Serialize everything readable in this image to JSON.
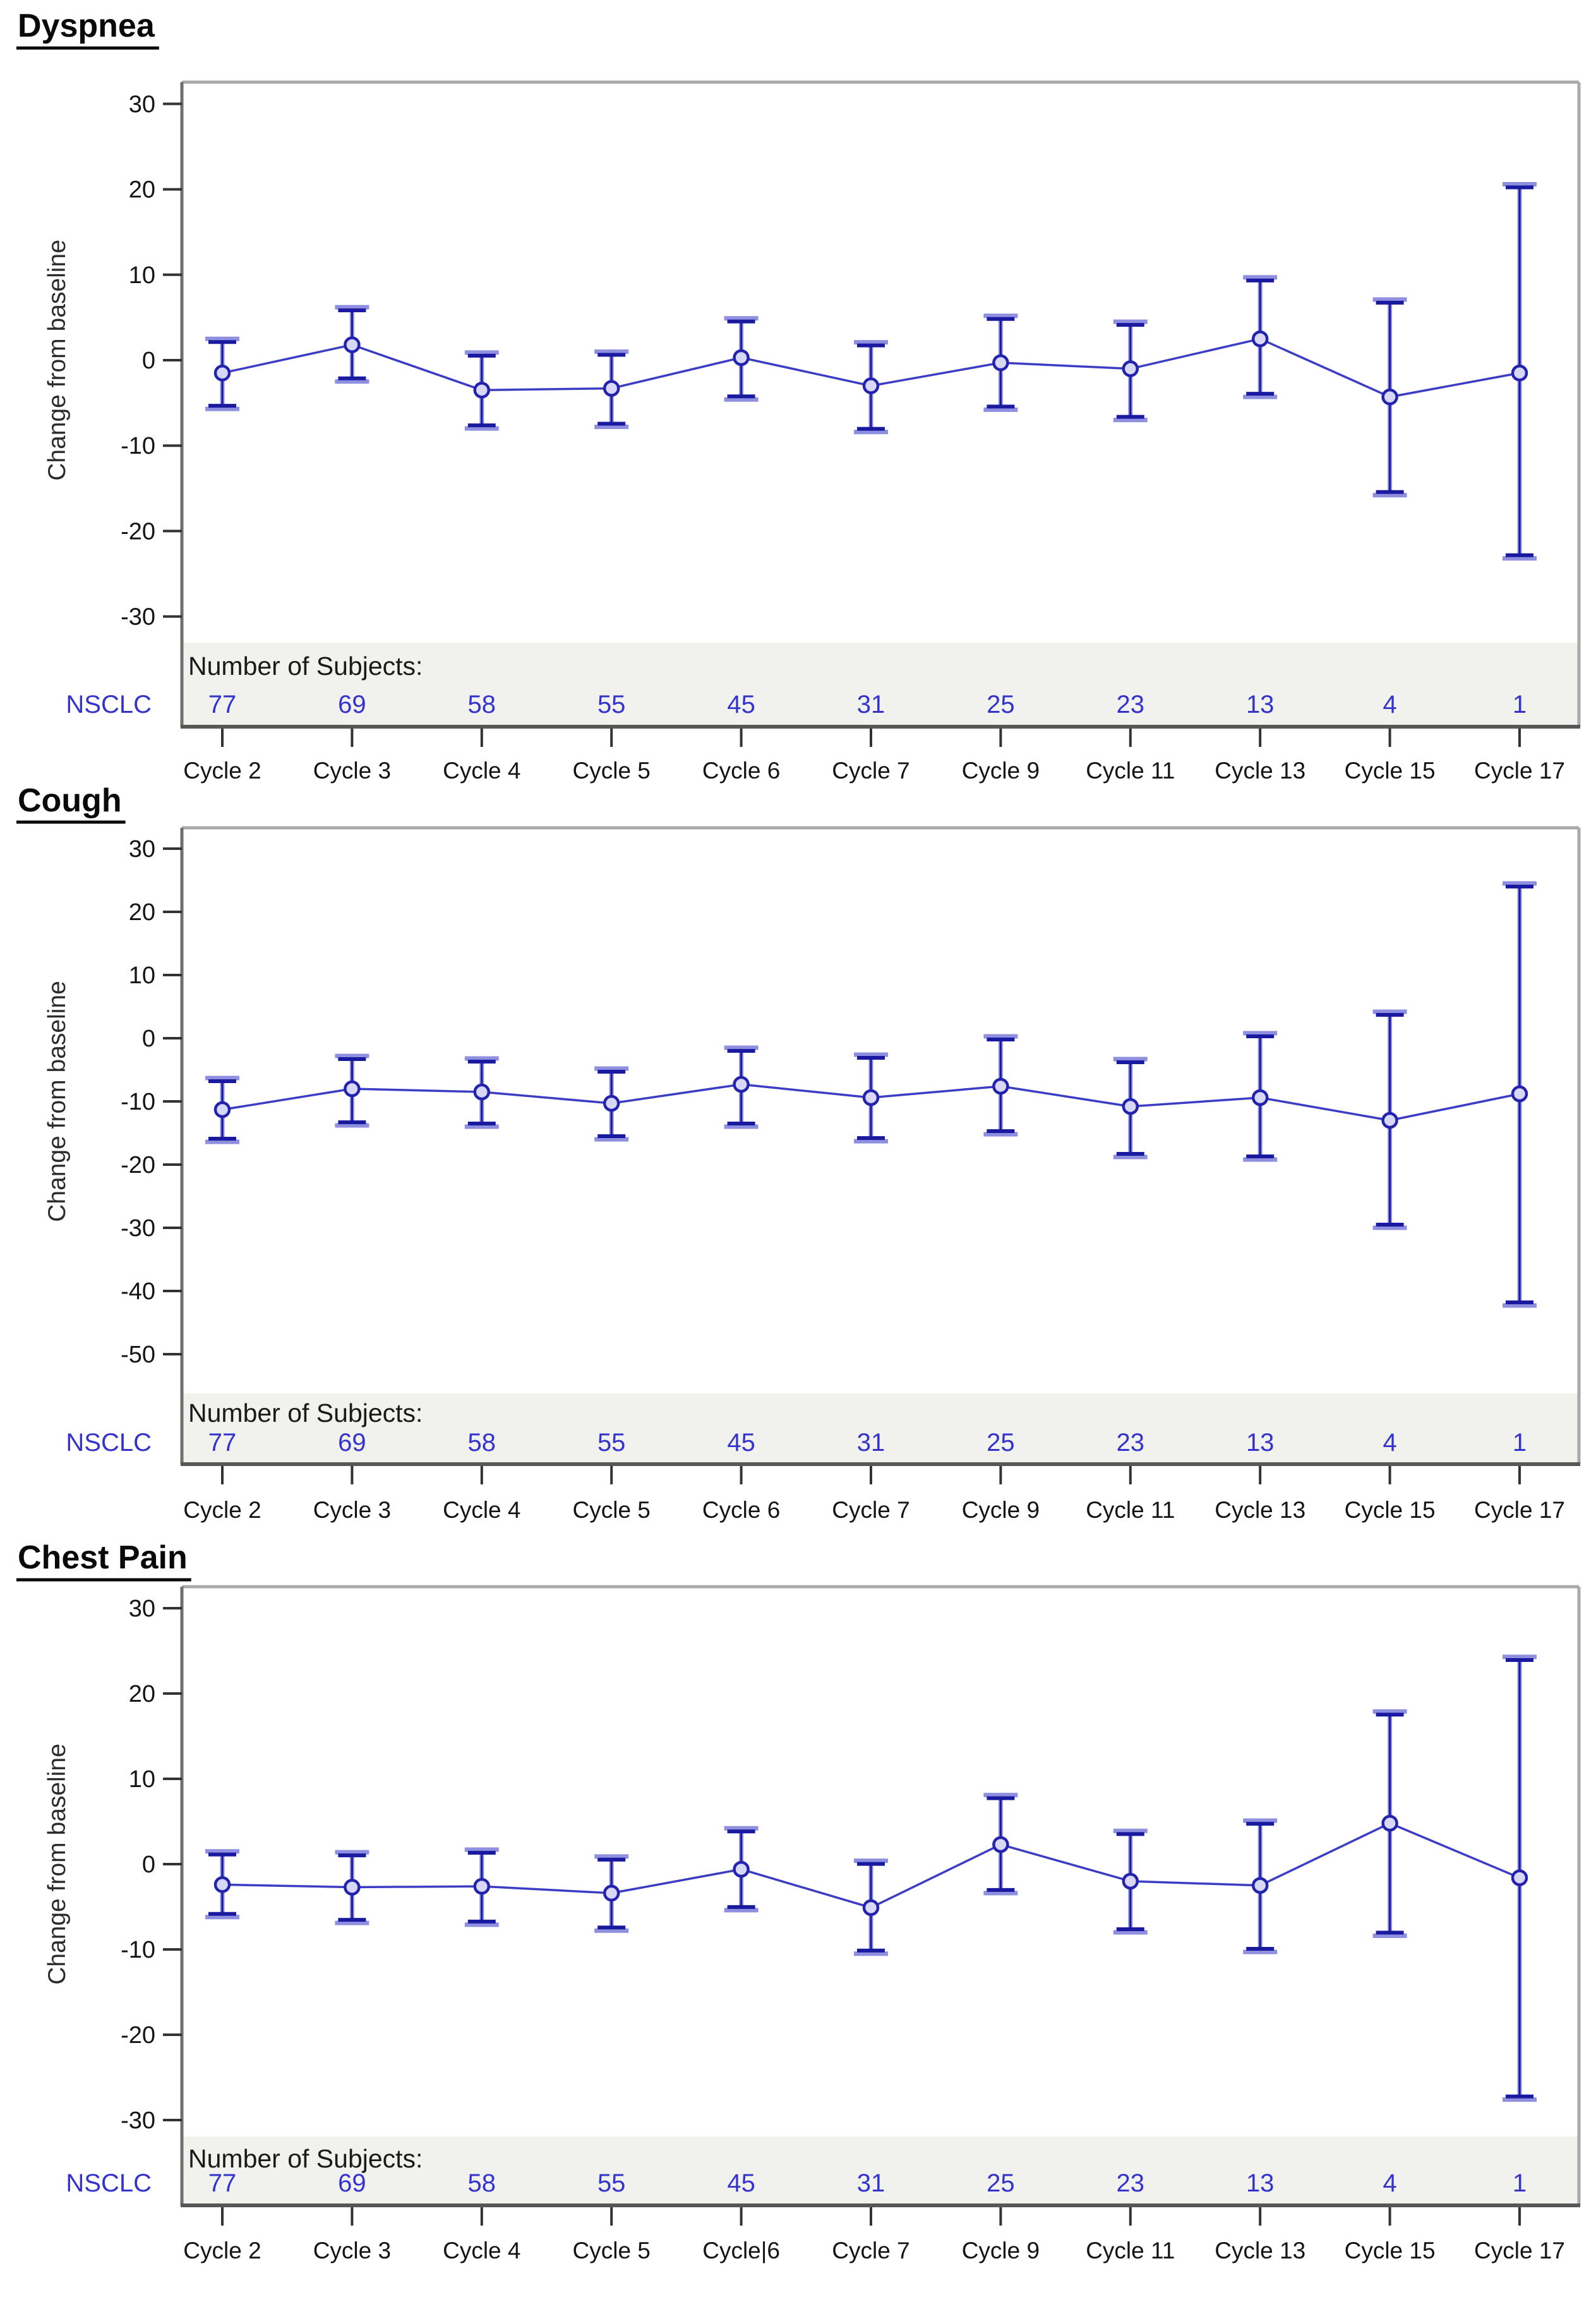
{
  "page": {
    "background": "#ffffff",
    "description": "Three stacked mean change-from-baseline plots with error bars by treatment cycle"
  },
  "labels": {
    "ylabel": "Change from baseline",
    "subjects_header": "Number of Subjects:",
    "row_label": "NSCLC"
  },
  "colors": {
    "band": "#f1f1ee",
    "frame_light": "#a9a9a9",
    "frame_left": "#6f6f6f",
    "frame_bottom": "#575757",
    "tick": "#333333",
    "series_line": "#3c3cc4",
    "marker_stroke": "#2323ad",
    "marker_fill": "#d8d8f6",
    "error_stem": "#8f8fe0",
    "error_cap": "#1a1aa0",
    "blue_text": "#3434cc",
    "black_text": "#0a0a0a"
  },
  "chart_data": [
    {
      "type": "line",
      "title": "Dyspnea",
      "xlabel": "",
      "ylabel": "Change from baseline",
      "ylim": [
        -30,
        30
      ],
      "yticks": [
        30,
        20,
        10,
        0,
        -10,
        -20,
        -30
      ],
      "grid": false,
      "legend_position": "none",
      "categories": [
        "Cycle 2",
        "Cycle 3",
        "Cycle 4",
        "Cycle 5",
        "Cycle 6",
        "Cycle 7",
        "Cycle 9",
        "Cycle 11",
        "Cycle 13",
        "Cycle 15",
        "Cycle 17"
      ],
      "subjects_header": "Number of Subjects:",
      "row_label": "NSCLC",
      "n_subjects": [
        77,
        69,
        58,
        55,
        45,
        31,
        25,
        23,
        13,
        4,
        1
      ],
      "series": [
        {
          "name": "NSCLC",
          "mean": [
            -1.5,
            1.8,
            -3.5,
            -3.3,
            0.3,
            -3.0,
            -0.3,
            -1.0,
            2.5,
            -4.3,
            -1.5
          ],
          "ci_low": [
            -5.7,
            -2.5,
            -8.0,
            -7.8,
            -4.6,
            -8.4,
            -5.8,
            -7.0,
            -4.3,
            -15.8,
            -23.2
          ],
          "ci_high": [
            2.5,
            6.2,
            0.9,
            1.0,
            4.9,
            2.1,
            5.2,
            4.5,
            9.7,
            7.1,
            20.6
          ]
        }
      ]
    },
    {
      "type": "line",
      "title": "Cough",
      "xlabel": "",
      "ylabel": "Change from baseline",
      "ylim": [
        -50,
        30
      ],
      "yticks": [
        30,
        20,
        10,
        0,
        -10,
        -20,
        -30,
        -40,
        -50
      ],
      "grid": false,
      "legend_position": "none",
      "categories": [
        "Cycle 2",
        "Cycle 3",
        "Cycle 4",
        "Cycle 5",
        "Cycle 6",
        "Cycle 7",
        "Cycle 9",
        "Cycle 11",
        "Cycle 13",
        "Cycle 15",
        "Cycle 17"
      ],
      "subjects_header": "Number of Subjects:",
      "row_label": "NSCLC",
      "n_subjects": [
        77,
        69,
        58,
        55,
        45,
        31,
        25,
        23,
        13,
        4,
        1
      ],
      "series": [
        {
          "name": "NSCLC",
          "mean": [
            -11.3,
            -8.0,
            -8.5,
            -10.3,
            -7.3,
            -9.4,
            -7.6,
            -10.8,
            -9.4,
            -13.0,
            -8.8
          ],
          "ci_low": [
            -16.4,
            -13.8,
            -14.0,
            -16.0,
            -14.0,
            -16.3,
            -15.2,
            -18.8,
            -19.2,
            -30.0,
            -42.3
          ],
          "ci_high": [
            -6.3,
            -2.8,
            -3.2,
            -4.8,
            -1.5,
            -2.6,
            0.3,
            -3.3,
            0.8,
            4.2,
            24.5
          ]
        }
      ]
    },
    {
      "type": "line",
      "title": "Chest Pain",
      "xlabel": "",
      "ylabel": "Change from baseline",
      "ylim": [
        -30,
        30
      ],
      "yticks": [
        30,
        20,
        10,
        0,
        -10,
        -20,
        -30
      ],
      "grid": false,
      "legend_position": "none",
      "categories": [
        "Cycle 2",
        "Cycle 3",
        "Cycle 4",
        "Cycle 5",
        "Cycle|6",
        "Cycle 7",
        "Cycle 9",
        "Cycle 11",
        "Cycle 13",
        "Cycle 15",
        "Cycle 17"
      ],
      "subjects_header": "Number of Subjects:",
      "row_label": "NSCLC",
      "n_subjects": [
        77,
        69,
        58,
        55,
        45,
        31,
        25,
        23,
        13,
        4,
        1
      ],
      "series": [
        {
          "name": "NSCLC",
          "mean": [
            -2.4,
            -2.7,
            -2.6,
            -3.4,
            -0.6,
            -5.1,
            2.3,
            -2.0,
            -2.5,
            4.8,
            -1.6
          ],
          "ci_low": [
            -6.2,
            -6.9,
            -7.1,
            -7.8,
            -5.4,
            -10.5,
            -3.4,
            -8.0,
            -10.3,
            -8.4,
            -27.6
          ],
          "ci_high": [
            1.5,
            1.4,
            1.7,
            0.9,
            4.2,
            0.4,
            8.1,
            3.9,
            5.1,
            17.9,
            24.3
          ]
        }
      ]
    }
  ]
}
